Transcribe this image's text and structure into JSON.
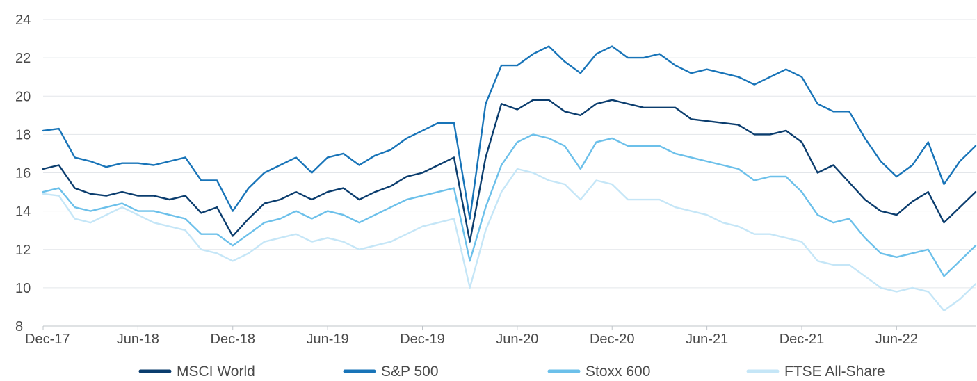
{
  "chart_data": {
    "type": "line",
    "title": "",
    "xlabel": "",
    "ylabel": "",
    "ylim": [
      8,
      24
    ],
    "yticks": [
      8,
      10,
      12,
      14,
      16,
      18,
      20,
      22,
      24
    ],
    "grid": true,
    "legend_position": "bottom",
    "x_ticks": [
      "Dec-17",
      "Jun-18",
      "Dec-18",
      "Jun-19",
      "Dec-19",
      "Jun-20",
      "Dec-20",
      "Jun-21",
      "Dec-21",
      "Jun-22"
    ],
    "x_month_start": "2017-12",
    "x_month_end": "2022-11",
    "series": [
      {
        "name": "MSCI World",
        "color": "#0b3d6e",
        "points": [
          [
            "2017-12",
            16.2
          ],
          [
            "2018-01",
            16.4
          ],
          [
            "2018-02",
            15.2
          ],
          [
            "2018-03",
            14.9
          ],
          [
            "2018-04",
            14.8
          ],
          [
            "2018-05",
            15.0
          ],
          [
            "2018-06",
            14.8
          ],
          [
            "2018-07",
            14.8
          ],
          [
            "2018-08",
            14.6
          ],
          [
            "2018-09",
            14.8
          ],
          [
            "2018-10",
            13.9
          ],
          [
            "2018-11",
            14.2
          ],
          [
            "2018-12",
            12.7
          ],
          [
            "2019-01",
            13.6
          ],
          [
            "2019-02",
            14.4
          ],
          [
            "2019-03",
            14.6
          ],
          [
            "2019-04",
            15.0
          ],
          [
            "2019-05",
            14.6
          ],
          [
            "2019-06",
            15.0
          ],
          [
            "2019-07",
            15.2
          ],
          [
            "2019-08",
            14.6
          ],
          [
            "2019-09",
            15.0
          ],
          [
            "2019-10",
            15.3
          ],
          [
            "2019-11",
            15.8
          ],
          [
            "2019-12",
            16.0
          ],
          [
            "2020-01",
            16.4
          ],
          [
            "2020-02",
            16.8
          ],
          [
            "2020-03",
            12.4
          ],
          [
            "2020-04",
            16.8
          ],
          [
            "2020-05",
            19.6
          ],
          [
            "2020-06",
            19.3
          ],
          [
            "2020-07",
            19.8
          ],
          [
            "2020-08",
            19.8
          ],
          [
            "2020-09",
            19.2
          ],
          [
            "2020-10",
            19.0
          ],
          [
            "2020-11",
            19.6
          ],
          [
            "2020-12",
            19.8
          ],
          [
            "2021-01",
            19.6
          ],
          [
            "2021-02",
            19.4
          ],
          [
            "2021-03",
            19.4
          ],
          [
            "2021-04",
            19.4
          ],
          [
            "2021-05",
            18.8
          ],
          [
            "2021-06",
            18.7
          ],
          [
            "2021-07",
            18.6
          ],
          [
            "2021-08",
            18.5
          ],
          [
            "2021-09",
            18.0
          ],
          [
            "2021-10",
            18.0
          ],
          [
            "2021-11",
            18.2
          ],
          [
            "2021-12",
            17.6
          ],
          [
            "2022-01",
            16.0
          ],
          [
            "2022-02",
            16.4
          ],
          [
            "2022-03",
            15.5
          ],
          [
            "2022-04",
            14.6
          ],
          [
            "2022-05",
            14.0
          ],
          [
            "2022-06",
            13.8
          ],
          [
            "2022-07",
            14.5
          ],
          [
            "2022-08",
            15.0
          ],
          [
            "2022-09",
            13.4
          ],
          [
            "2022-10",
            14.2
          ],
          [
            "2022-11",
            15.0
          ]
        ]
      },
      {
        "name": "S&P 500",
        "color": "#1874b8",
        "points": [
          [
            "2017-12",
            18.2
          ],
          [
            "2018-01",
            18.3
          ],
          [
            "2018-02",
            16.8
          ],
          [
            "2018-03",
            16.6
          ],
          [
            "2018-04",
            16.3
          ],
          [
            "2018-05",
            16.5
          ],
          [
            "2018-06",
            16.5
          ],
          [
            "2018-07",
            16.4
          ],
          [
            "2018-08",
            16.6
          ],
          [
            "2018-09",
            16.8
          ],
          [
            "2018-10",
            15.6
          ],
          [
            "2018-11",
            15.6
          ],
          [
            "2018-12",
            14.0
          ],
          [
            "2019-01",
            15.2
          ],
          [
            "2019-02",
            16.0
          ],
          [
            "2019-03",
            16.4
          ],
          [
            "2019-04",
            16.8
          ],
          [
            "2019-05",
            16.0
          ],
          [
            "2019-06",
            16.8
          ],
          [
            "2019-07",
            17.0
          ],
          [
            "2019-08",
            16.4
          ],
          [
            "2019-09",
            16.9
          ],
          [
            "2019-10",
            17.2
          ],
          [
            "2019-11",
            17.8
          ],
          [
            "2019-12",
            18.2
          ],
          [
            "2020-01",
            18.6
          ],
          [
            "2020-02",
            18.6
          ],
          [
            "2020-03",
            13.6
          ],
          [
            "2020-04",
            19.6
          ],
          [
            "2020-05",
            21.6
          ],
          [
            "2020-06",
            21.6
          ],
          [
            "2020-07",
            22.2
          ],
          [
            "2020-08",
            22.6
          ],
          [
            "2020-09",
            21.8
          ],
          [
            "2020-10",
            21.2
          ],
          [
            "2020-11",
            22.2
          ],
          [
            "2020-12",
            22.6
          ],
          [
            "2021-01",
            22.0
          ],
          [
            "2021-02",
            22.0
          ],
          [
            "2021-03",
            22.2
          ],
          [
            "2021-04",
            21.6
          ],
          [
            "2021-05",
            21.2
          ],
          [
            "2021-06",
            21.4
          ],
          [
            "2021-07",
            21.2
          ],
          [
            "2021-08",
            21.0
          ],
          [
            "2021-09",
            20.6
          ],
          [
            "2021-10",
            21.0
          ],
          [
            "2021-11",
            21.4
          ],
          [
            "2021-12",
            21.0
          ],
          [
            "2022-01",
            19.6
          ],
          [
            "2022-02",
            19.2
          ],
          [
            "2022-03",
            19.2
          ],
          [
            "2022-04",
            17.8
          ],
          [
            "2022-05",
            16.6
          ],
          [
            "2022-06",
            15.8
          ],
          [
            "2022-07",
            16.4
          ],
          [
            "2022-08",
            17.6
          ],
          [
            "2022-09",
            15.4
          ],
          [
            "2022-10",
            16.6
          ],
          [
            "2022-11",
            17.4
          ]
        ]
      },
      {
        "name": "Stoxx 600",
        "color": "#6cc0ea",
        "points": [
          [
            "2017-12",
            15.0
          ],
          [
            "2018-01",
            15.2
          ],
          [
            "2018-02",
            14.2
          ],
          [
            "2018-03",
            14.0
          ],
          [
            "2018-04",
            14.2
          ],
          [
            "2018-05",
            14.4
          ],
          [
            "2018-06",
            14.0
          ],
          [
            "2018-07",
            14.0
          ],
          [
            "2018-08",
            13.8
          ],
          [
            "2018-09",
            13.6
          ],
          [
            "2018-10",
            12.8
          ],
          [
            "2018-11",
            12.8
          ],
          [
            "2018-12",
            12.2
          ],
          [
            "2019-01",
            12.8
          ],
          [
            "2019-02",
            13.4
          ],
          [
            "2019-03",
            13.6
          ],
          [
            "2019-04",
            14.0
          ],
          [
            "2019-05",
            13.6
          ],
          [
            "2019-06",
            14.0
          ],
          [
            "2019-07",
            13.8
          ],
          [
            "2019-08",
            13.4
          ],
          [
            "2019-09",
            13.8
          ],
          [
            "2019-10",
            14.2
          ],
          [
            "2019-11",
            14.6
          ],
          [
            "2019-12",
            14.8
          ],
          [
            "2020-01",
            15.0
          ],
          [
            "2020-02",
            15.2
          ],
          [
            "2020-03",
            11.4
          ],
          [
            "2020-04",
            14.2
          ],
          [
            "2020-05",
            16.4
          ],
          [
            "2020-06",
            17.6
          ],
          [
            "2020-07",
            18.0
          ],
          [
            "2020-08",
            17.8
          ],
          [
            "2020-09",
            17.4
          ],
          [
            "2020-10",
            16.2
          ],
          [
            "2020-11",
            17.6
          ],
          [
            "2020-12",
            17.8
          ],
          [
            "2021-01",
            17.4
          ],
          [
            "2021-02",
            17.4
          ],
          [
            "2021-03",
            17.4
          ],
          [
            "2021-04",
            17.0
          ],
          [
            "2021-05",
            16.8
          ],
          [
            "2021-06",
            16.6
          ],
          [
            "2021-07",
            16.4
          ],
          [
            "2021-08",
            16.2
          ],
          [
            "2021-09",
            15.6
          ],
          [
            "2021-10",
            15.8
          ],
          [
            "2021-11",
            15.8
          ],
          [
            "2021-12",
            15.0
          ],
          [
            "2022-01",
            13.8
          ],
          [
            "2022-02",
            13.4
          ],
          [
            "2022-03",
            13.6
          ],
          [
            "2022-04",
            12.6
          ],
          [
            "2022-05",
            11.8
          ],
          [
            "2022-06",
            11.6
          ],
          [
            "2022-07",
            11.8
          ],
          [
            "2022-08",
            12.0
          ],
          [
            "2022-09",
            10.6
          ],
          [
            "2022-10",
            11.4
          ],
          [
            "2022-11",
            12.2
          ]
        ]
      },
      {
        "name": "FTSE All-Share",
        "color": "#c5e6f7",
        "points": [
          [
            "2017-12",
            14.9
          ],
          [
            "2018-01",
            14.8
          ],
          [
            "2018-02",
            13.6
          ],
          [
            "2018-03",
            13.4
          ],
          [
            "2018-04",
            13.8
          ],
          [
            "2018-05",
            14.2
          ],
          [
            "2018-06",
            13.8
          ],
          [
            "2018-07",
            13.4
          ],
          [
            "2018-08",
            13.2
          ],
          [
            "2018-09",
            13.0
          ],
          [
            "2018-10",
            12.0
          ],
          [
            "2018-11",
            11.8
          ],
          [
            "2018-12",
            11.4
          ],
          [
            "2019-01",
            11.8
          ],
          [
            "2019-02",
            12.4
          ],
          [
            "2019-03",
            12.6
          ],
          [
            "2019-04",
            12.8
          ],
          [
            "2019-05",
            12.4
          ],
          [
            "2019-06",
            12.6
          ],
          [
            "2019-07",
            12.4
          ],
          [
            "2019-08",
            12.0
          ],
          [
            "2019-09",
            12.2
          ],
          [
            "2019-10",
            12.4
          ],
          [
            "2019-11",
            12.8
          ],
          [
            "2019-12",
            13.2
          ],
          [
            "2020-01",
            13.4
          ],
          [
            "2020-02",
            13.6
          ],
          [
            "2020-03",
            10.0
          ],
          [
            "2020-04",
            13.0
          ],
          [
            "2020-05",
            15.0
          ],
          [
            "2020-06",
            16.2
          ],
          [
            "2020-07",
            16.0
          ],
          [
            "2020-08",
            15.6
          ],
          [
            "2020-09",
            15.4
          ],
          [
            "2020-10",
            14.6
          ],
          [
            "2020-11",
            15.6
          ],
          [
            "2020-12",
            15.4
          ],
          [
            "2021-01",
            14.6
          ],
          [
            "2021-02",
            14.6
          ],
          [
            "2021-03",
            14.6
          ],
          [
            "2021-04",
            14.2
          ],
          [
            "2021-05",
            14.0
          ],
          [
            "2021-06",
            13.8
          ],
          [
            "2021-07",
            13.4
          ],
          [
            "2021-08",
            13.2
          ],
          [
            "2021-09",
            12.8
          ],
          [
            "2021-10",
            12.8
          ],
          [
            "2021-11",
            12.6
          ],
          [
            "2021-12",
            12.4
          ],
          [
            "2022-01",
            11.4
          ],
          [
            "2022-02",
            11.2
          ],
          [
            "2022-03",
            11.2
          ],
          [
            "2022-04",
            10.6
          ],
          [
            "2022-05",
            10.0
          ],
          [
            "2022-06",
            9.8
          ],
          [
            "2022-07",
            10.0
          ],
          [
            "2022-08",
            9.8
          ],
          [
            "2022-09",
            8.8
          ],
          [
            "2022-10",
            9.4
          ],
          [
            "2022-11",
            10.2
          ]
        ]
      }
    ]
  }
}
